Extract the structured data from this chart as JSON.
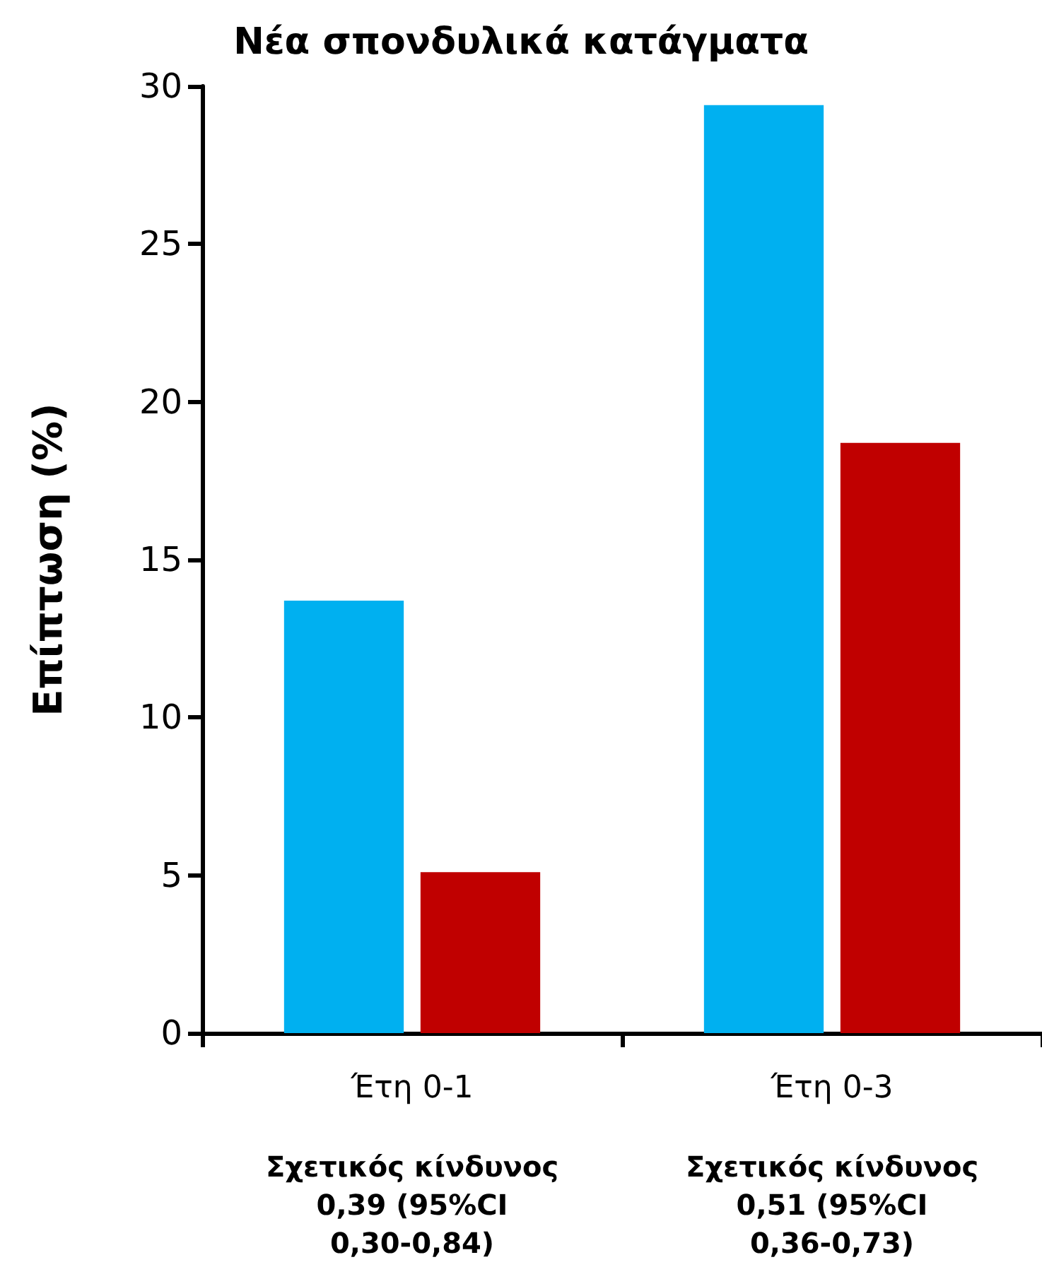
{
  "chart_data": {
    "type": "bar",
    "title": "Νέα σπονδυλικά κατάγματα",
    "ylabel": "Επίπτωση (%)",
    "categories": [
      "Έτη 0-1",
      "Έτη 0-3"
    ],
    "series": [
      {
        "color": "#00b0f0",
        "values": [
          13.7,
          29.4
        ]
      },
      {
        "color": "#c00000",
        "values": [
          5.1,
          18.7
        ]
      }
    ],
    "ylim": [
      0,
      30
    ],
    "yticks": [
      0,
      5,
      10,
      15,
      20,
      25,
      30
    ],
    "grid": false,
    "annotations": [
      "Σχετικός κίνδυνος\n0,39 (95%CI\n0,30-0,84)",
      "Σχετικός κίνδυνος\n0,51 (95%CI\n0,36-0,73)"
    ]
  }
}
